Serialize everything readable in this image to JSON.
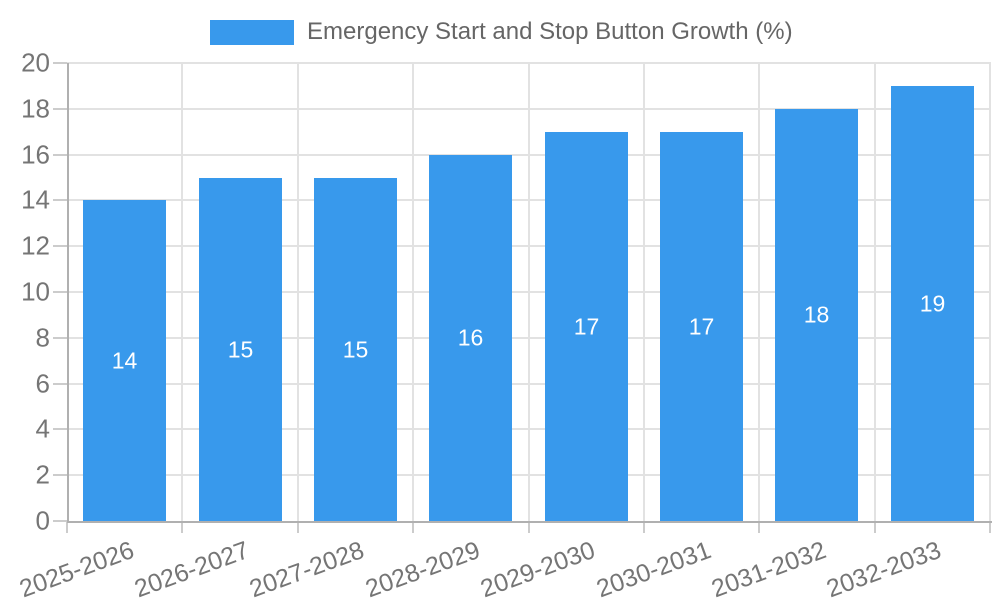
{
  "chart_data": {
    "type": "bar",
    "title": "Emergency Start and Stop Button Growth (%)",
    "categories": [
      "2025-2026",
      "2026-2027",
      "2027-2028",
      "2028-2029",
      "2029-2030",
      "2030-2031",
      "2031-2032",
      "2032-2033"
    ],
    "values": [
      14,
      15,
      15,
      16,
      17,
      17,
      18,
      19
    ],
    "bar_value_labels": [
      "14",
      "15",
      "15",
      "16",
      "17",
      "17",
      "18",
      "19"
    ],
    "xlabel": "",
    "ylabel": "",
    "ylim": [
      0,
      20
    ],
    "yticks": [
      0,
      2,
      4,
      6,
      8,
      10,
      12,
      14,
      16,
      18,
      20
    ],
    "grid": true,
    "legend_position": "top-center",
    "x_label_rotation_deg": -20,
    "colors": {
      "bar": "#3899ec",
      "bar_label": "#ffffff",
      "grid": "#e2e2e2",
      "axis": "#b0b0b0",
      "tick": "#cccccc",
      "tick_label": "#757575",
      "title": "#666666",
      "background": "#ffffff"
    }
  }
}
